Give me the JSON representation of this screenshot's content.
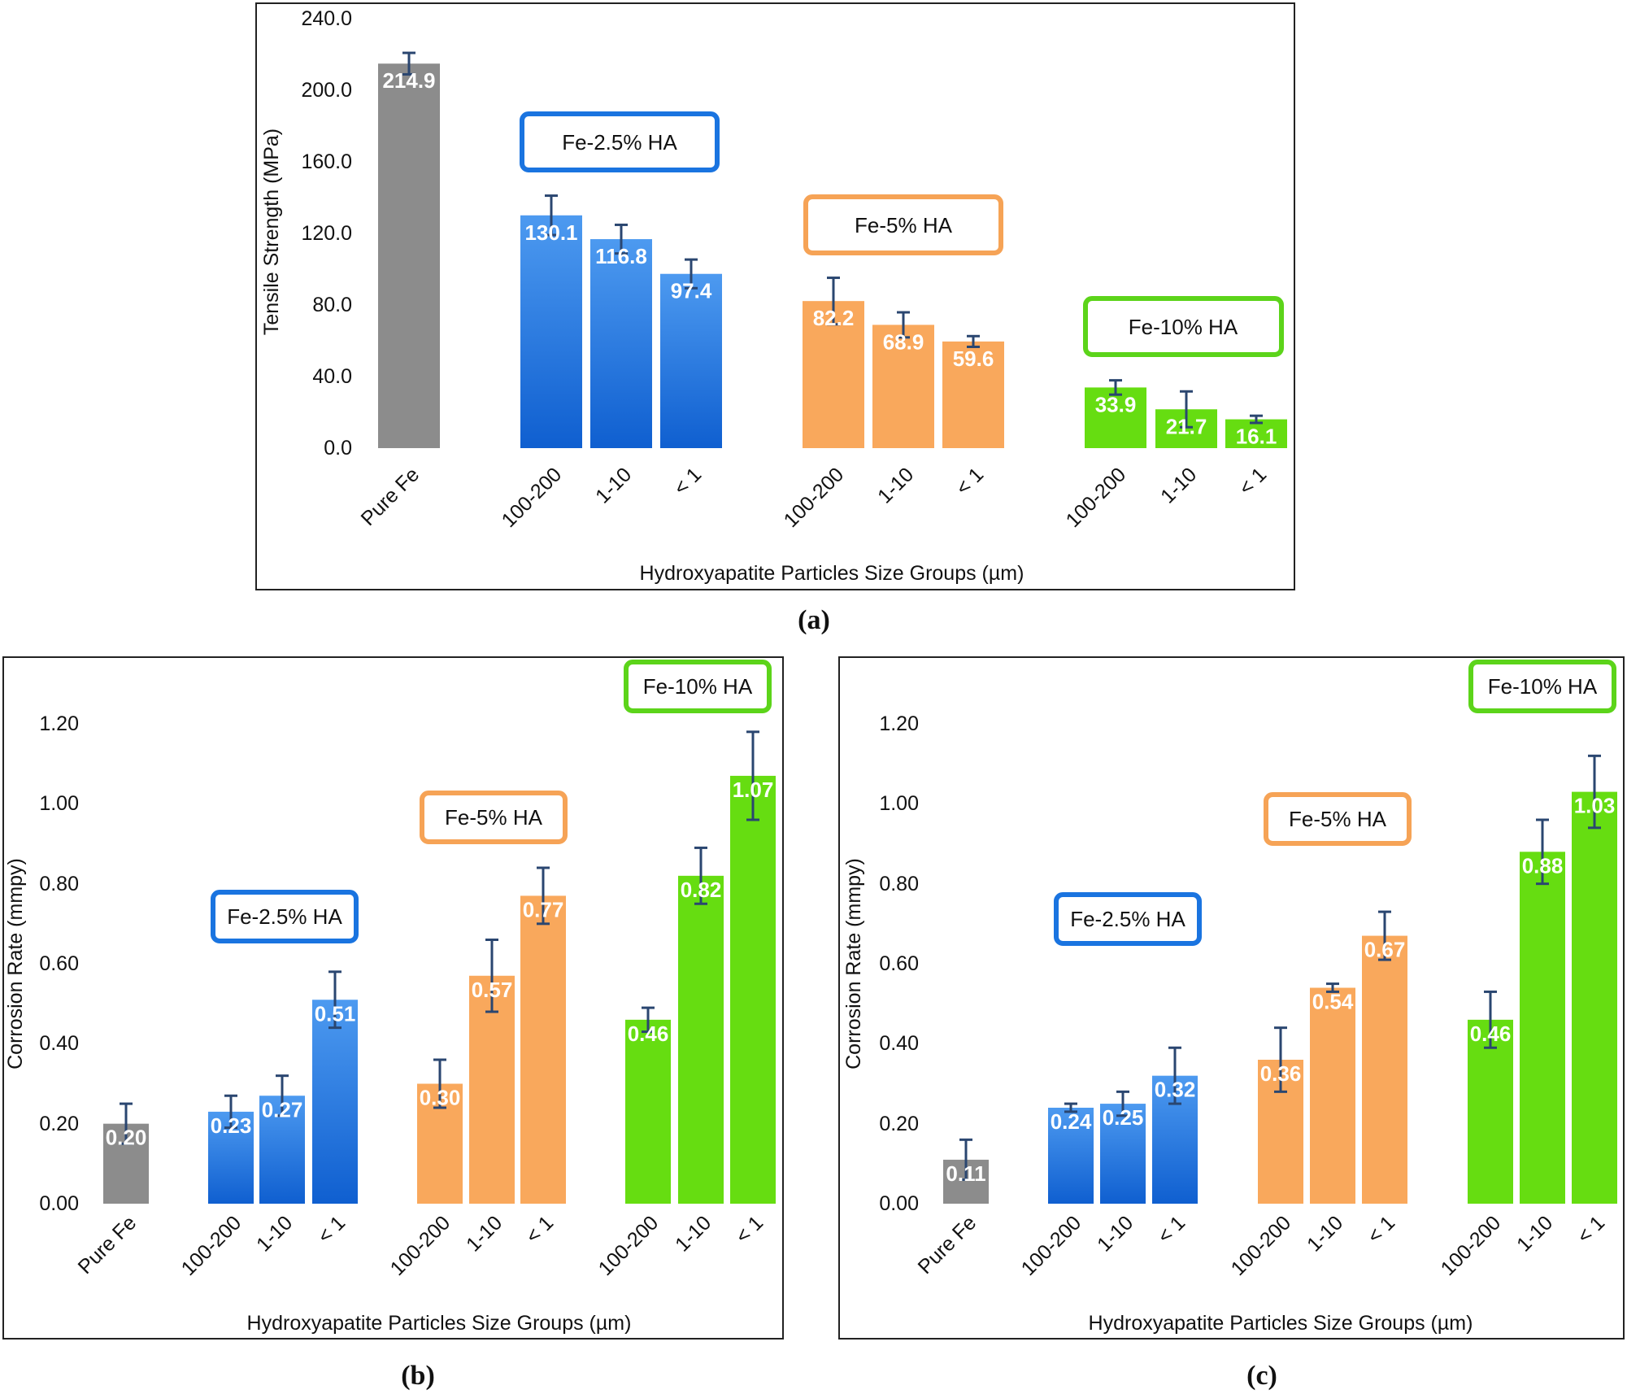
{
  "colors": {
    "gray": "#8c8c8c",
    "blue_top": "#4d9af0",
    "blue_bottom": "#0f5fd0",
    "orange": "#f9a85c",
    "green": "#66dd11",
    "blue_box": "#1a74e0",
    "orange_box": "#f6a356",
    "green_box": "#5cd41a",
    "error_bar": "#2a4670"
  },
  "chart_data": [
    {
      "id": "a",
      "type": "bar",
      "caption": "(a)",
      "ylabel": "Tensile  Strength (MPa)",
      "xlabel": "Hydroxyapatite  Particles Size Groups  (µm)",
      "ylim": [
        0,
        240
      ],
      "yticks": [
        "0.0",
        "40.0",
        "80.0",
        "120.0",
        "160.0",
        "200.0",
        "240.0"
      ],
      "decimals": 1,
      "categories": [
        "Pure Fe",
        "100-200",
        "1-10",
        "< 1",
        "100-200",
        "1-10",
        "< 1",
        "100-200",
        "1-10",
        "< 1"
      ],
      "groups": [
        {
          "name": "",
          "color": "gray",
          "labels": [
            "Pure Fe"
          ],
          "values": [
            214.9
          ],
          "errors": [
            6
          ]
        },
        {
          "name": "Fe-2.5% HA",
          "color": "blue",
          "labels": [
            "100-200",
            "1-10",
            "< 1"
          ],
          "values": [
            130.1,
            116.8,
            97.4
          ],
          "errors": [
            11,
            8,
            8
          ]
        },
        {
          "name": "Fe-5% HA",
          "color": "orange",
          "labels": [
            "100-200",
            "1-10",
            "< 1"
          ],
          "values": [
            82.2,
            68.9,
            59.6
          ],
          "errors": [
            13,
            7,
            3
          ]
        },
        {
          "name": "Fe-10% HA",
          "color": "green",
          "labels": [
            "100-200",
            "1-10",
            "< 1"
          ],
          "values": [
            33.9,
            21.7,
            16.1
          ],
          "errors": [
            4,
            10,
            2
          ]
        }
      ]
    },
    {
      "id": "b",
      "type": "bar",
      "caption": "(b)",
      "ylabel": "Corrosion Rate (mmpy)",
      "xlabel": "Hydroxyapatite  Particles Size Groups (µm)",
      "ylim": [
        0,
        1.2
      ],
      "yticks": [
        "0.00",
        "0.20",
        "0.40",
        "0.60",
        "0.80",
        "1.00",
        "1.20"
      ],
      "decimals": 2,
      "categories": [
        "Pure Fe",
        "100-200",
        "1-10",
        "< 1",
        "100-200",
        "1-10",
        "< 1",
        "100-200",
        "1-10",
        "< 1"
      ],
      "groups": [
        {
          "name": "",
          "color": "gray",
          "labels": [
            "Pure Fe"
          ],
          "values": [
            0.2
          ],
          "errors": [
            0.05
          ]
        },
        {
          "name": "Fe-2.5% HA",
          "color": "blue",
          "labels": [
            "100-200",
            "1-10",
            "< 1"
          ],
          "values": [
            0.23,
            0.27,
            0.51
          ],
          "errors": [
            0.04,
            0.05,
            0.07
          ]
        },
        {
          "name": "Fe-5% HA",
          "color": "orange",
          "labels": [
            "100-200",
            "1-10",
            "< 1"
          ],
          "values": [
            0.3,
            0.57,
            0.77
          ],
          "errors": [
            0.06,
            0.09,
            0.07
          ]
        },
        {
          "name": "Fe-10% HA",
          "color": "green",
          "labels": [
            "100-200",
            "1-10",
            "< 1"
          ],
          "values": [
            0.46,
            0.82,
            1.07
          ],
          "errors": [
            0.03,
            0.07,
            0.11
          ]
        }
      ]
    },
    {
      "id": "c",
      "type": "bar",
      "caption": "(c)",
      "ylabel": "Corrosion Rate (mmpy)",
      "xlabel": "Hydroxyapatite  Particles Size Groups (µm)",
      "ylim": [
        0,
        1.2
      ],
      "yticks": [
        "0.00",
        "0.20",
        "0.40",
        "0.60",
        "0.80",
        "1.00",
        "1.20"
      ],
      "decimals": 2,
      "categories": [
        "Pure Fe",
        "100-200",
        "1-10",
        "< 1",
        "100-200",
        "1-10",
        "< 1",
        "100-200",
        "1-10",
        "< 1"
      ],
      "groups": [
        {
          "name": "",
          "color": "gray",
          "labels": [
            "Pure Fe"
          ],
          "values": [
            0.11
          ],
          "errors": [
            0.05
          ]
        },
        {
          "name": "Fe-2.5% HA",
          "color": "blue",
          "labels": [
            "100-200",
            "1-10",
            "< 1"
          ],
          "values": [
            0.24,
            0.25,
            0.32
          ],
          "errors": [
            0.01,
            0.03,
            0.07
          ]
        },
        {
          "name": "Fe-5% HA",
          "color": "orange",
          "labels": [
            "100-200",
            "1-10",
            "< 1"
          ],
          "values": [
            0.36,
            0.54,
            0.67
          ],
          "errors": [
            0.08,
            0.01,
            0.06
          ]
        },
        {
          "name": "Fe-10% HA",
          "color": "green",
          "labels": [
            "100-200",
            "1-10",
            "< 1"
          ],
          "values": [
            0.46,
            0.88,
            1.03
          ],
          "errors": [
            0.07,
            0.08,
            0.09
          ]
        }
      ]
    }
  ]
}
